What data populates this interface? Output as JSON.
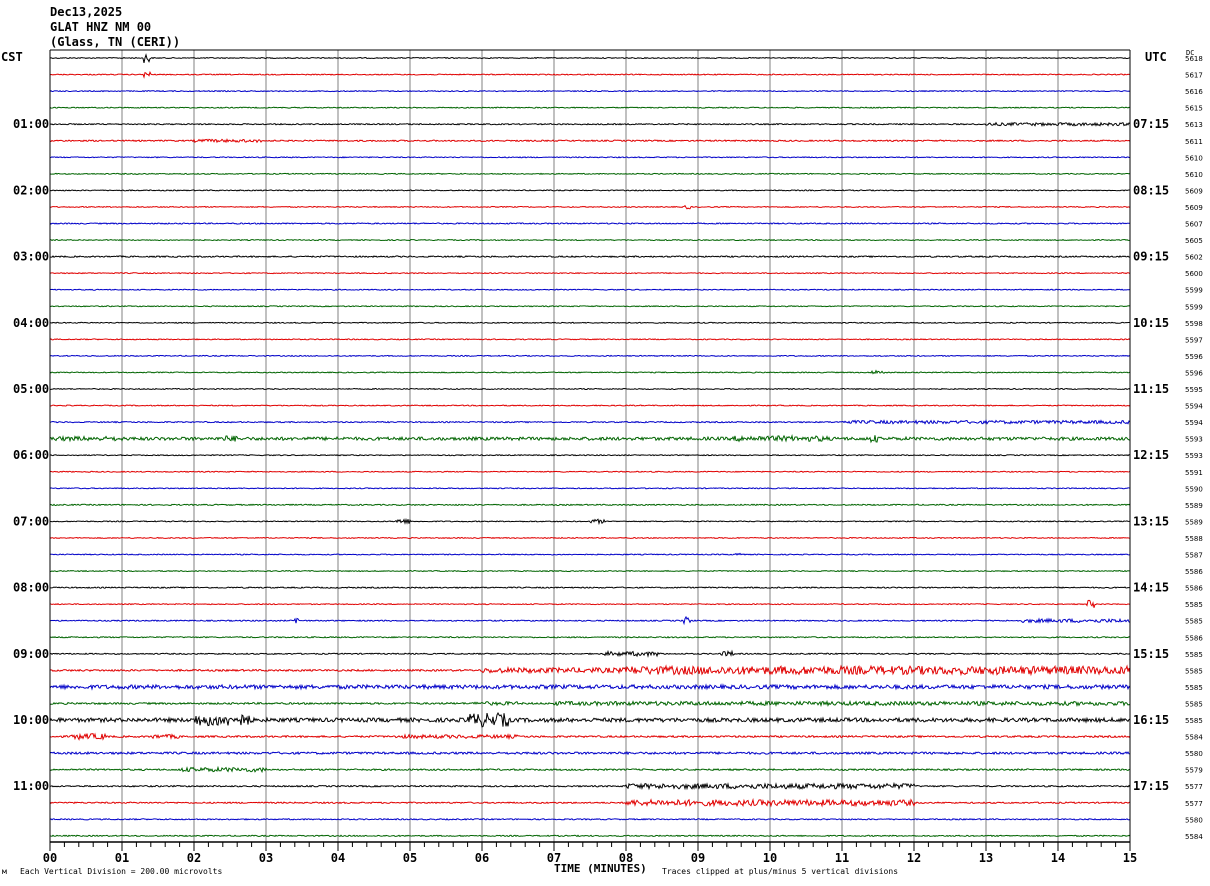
{
  "header": {
    "date": "Dec13,2025",
    "station": "GLAT HNZ NM 00",
    "location": "(Glass, TN (CERI))"
  },
  "left_zone": "CST",
  "right_zone": "UTC",
  "dc_label": "DC",
  "footer": {
    "scale_note": "Each Vertical Division =  200.00 microvolts",
    "clip_note": "Traces clipped at plus/minus 5 vertical divisions",
    "x_title": "TIME (MINUTES)",
    "corner_mark": "м"
  },
  "colors": {
    "cycle": [
      "#000000",
      "#e00000",
      "#0000c8",
      "#006400"
    ],
    "grid": "#808080",
    "frame": "#000000"
  },
  "chart_data": {
    "type": "line",
    "description_of_axes": "helicorder",
    "x_ticks": [
      "00",
      "01",
      "02",
      "03",
      "04",
      "05",
      "06",
      "07",
      "08",
      "09",
      "10",
      "11",
      "12",
      "13",
      "14",
      "15"
    ],
    "xlim": [
      0,
      15
    ],
    "left_times": [
      "01:00",
      "02:00",
      "03:00",
      "04:00",
      "05:00",
      "06:00",
      "07:00",
      "08:00",
      "09:00",
      "10:00",
      "11:00"
    ],
    "right_times": [
      "07:15",
      "08:15",
      "09:15",
      "10:15",
      "11:15",
      "12:15",
      "13:15",
      "14:15",
      "15:15",
      "16:15",
      "17:15"
    ],
    "dc_values": [
      "5618",
      "5617",
      "5616",
      "5615",
      "5613",
      "5611",
      "5610",
      "5610",
      "5609",
      "5609",
      "5607",
      "5605",
      "5602",
      "5600",
      "5599",
      "5599",
      "5598",
      "5597",
      "5596",
      "5596",
      "5595",
      "5594",
      "5594",
      "5593",
      "5593",
      "5591",
      "5590",
      "5589",
      "5589",
      "5588",
      "5587",
      "5586",
      "5586",
      "5585",
      "5585",
      "5586",
      "5585",
      "5585",
      "5585",
      "5585",
      "5585",
      "5584",
      "5580",
      "5579",
      "5577",
      "5577",
      "5580",
      "5584"
    ],
    "activity": [
      [
        0.5,
        [
          [
            1.3,
            1.4,
            5
          ]
        ]
      ],
      [
        0.5,
        [
          [
            1.3,
            1.4,
            3
          ]
        ]
      ],
      [
        0.5,
        []
      ],
      [
        0.5,
        []
      ],
      [
        0.6,
        [
          [
            13,
            15,
            1.5
          ]
        ]
      ],
      [
        0.7,
        [
          [
            2,
            3,
            1.5
          ]
        ]
      ],
      [
        0.5,
        []
      ],
      [
        0.5,
        []
      ],
      [
        0.5,
        []
      ],
      [
        0.5,
        [
          [
            8.8,
            8.9,
            2
          ]
        ]
      ],
      [
        0.6,
        []
      ],
      [
        0.5,
        []
      ],
      [
        0.7,
        []
      ],
      [
        0.5,
        []
      ],
      [
        0.5,
        []
      ],
      [
        0.5,
        []
      ],
      [
        0.5,
        []
      ],
      [
        0.5,
        []
      ],
      [
        0.5,
        []
      ],
      [
        0.5,
        [
          [
            11.4,
            11.6,
            2
          ]
        ]
      ],
      [
        0.5,
        []
      ],
      [
        0.5,
        []
      ],
      [
        0.6,
        [
          [
            11,
            15,
            1.6
          ]
        ]
      ],
      [
        1.6,
        [
          [
            0,
            1,
            2.2
          ],
          [
            2.4,
            2.6,
            3
          ],
          [
            9.5,
            10.8,
            2.8
          ],
          [
            11.4,
            11.5,
            4
          ]
        ]
      ],
      [
        0.5,
        []
      ],
      [
        0.5,
        []
      ],
      [
        0.5,
        []
      ],
      [
        0.6,
        []
      ],
      [
        0.5,
        [
          [
            4.8,
            5.0,
            2.5
          ],
          [
            7.5,
            7.7,
            2.2
          ]
        ]
      ],
      [
        0.5,
        []
      ],
      [
        0.5,
        [
          [
            9.5,
            9.6,
            3
          ]
        ]
      ],
      [
        0.5,
        []
      ],
      [
        0.6,
        []
      ],
      [
        0.5,
        [
          [
            14.4,
            14.5,
            4
          ]
        ]
      ],
      [
        0.6,
        [
          [
            3.4,
            3.45,
            4
          ],
          [
            8.8,
            8.9,
            4
          ],
          [
            13.5,
            15,
            1.8
          ]
        ]
      ],
      [
        0.6,
        []
      ],
      [
        0.6,
        [
          [
            7.7,
            8.5,
            2.2
          ],
          [
            9.3,
            9.5,
            2.5
          ]
        ]
      ],
      [
        0.9,
        [
          [
            6,
            8,
            2.6
          ],
          [
            8,
            15,
            4.2
          ]
        ]
      ],
      [
        2.0,
        []
      ],
      [
        0.9,
        [
          [
            5.9,
            6.5,
            1.8
          ],
          [
            7,
            15,
            2.0
          ]
        ]
      ],
      [
        2.0,
        [
          [
            2.0,
            2.8,
            6
          ],
          [
            5.8,
            6.4,
            7
          ]
        ]
      ],
      [
        0.9,
        [
          [
            0.3,
            0.8,
            3
          ],
          [
            1.4,
            1.8,
            2
          ],
          [
            4.8,
            6.5,
            1.8
          ]
        ]
      ],
      [
        1.1,
        []
      ],
      [
        0.8,
        [
          [
            1.8,
            3.0,
            2.2
          ]
        ]
      ],
      [
        0.7,
        [
          [
            8,
            12,
            2.6
          ]
        ]
      ],
      [
        0.7,
        [
          [
            8,
            12,
            3.0
          ]
        ]
      ],
      [
        0.6,
        []
      ],
      [
        0.6,
        []
      ]
    ]
  }
}
